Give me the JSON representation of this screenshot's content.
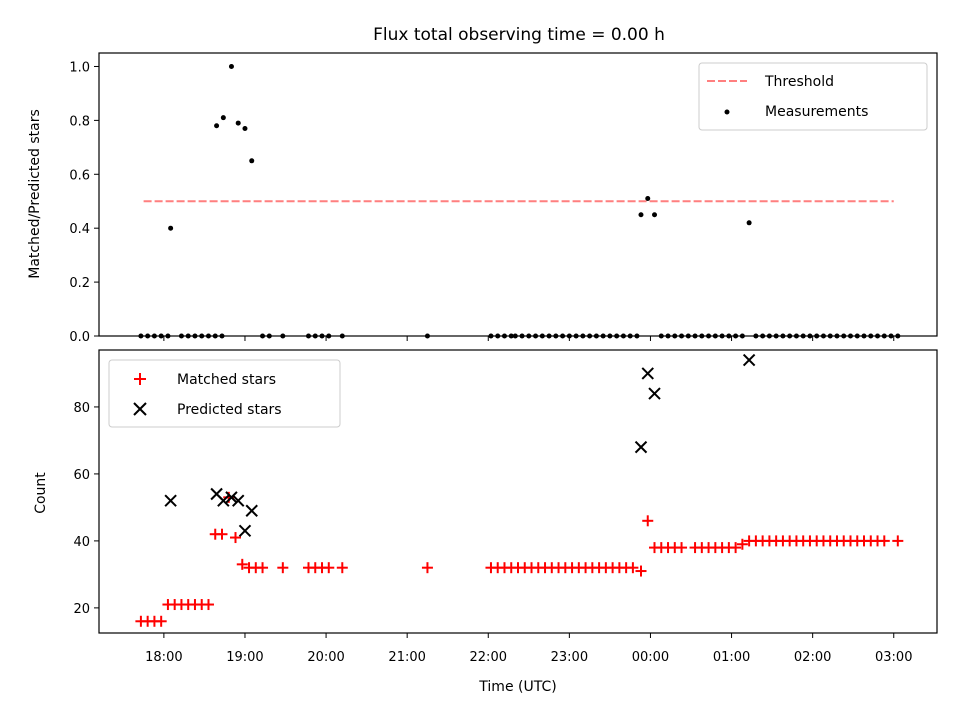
{
  "chart_data": [
    {
      "type": "scatter",
      "title": "Flux total observing time = 0.00 h",
      "ylabel": "Matched/Predicted stars",
      "ylim": [
        0,
        1.05
      ],
      "yticks": [
        0.0,
        0.2,
        0.4,
        0.6,
        0.8,
        1.0
      ],
      "ytick_labels": [
        "0.0",
        "0.2",
        "0.4",
        "0.6",
        "0.8",
        "1.0"
      ],
      "legend_position": "top-right",
      "threshold": {
        "name": "Threshold",
        "value": 0.5,
        "color": "#ff7f7f",
        "style": "dashed",
        "x_range": [
          "17:45",
          "03:00"
        ]
      },
      "series": [
        {
          "name": "Measurements",
          "color": "#000000",
          "points": [
            [
              "17:43",
              0
            ],
            [
              "17:48",
              0
            ],
            [
              "17:53",
              0
            ],
            [
              "17:58",
              0
            ],
            [
              "18:03",
              0
            ],
            [
              "18:05",
              0.4
            ],
            [
              "18:13",
              0
            ],
            [
              "18:18",
              0
            ],
            [
              "18:23",
              0
            ],
            [
              "18:28",
              0
            ],
            [
              "18:33",
              0
            ],
            [
              "18:38",
              0
            ],
            [
              "18:43",
              0
            ],
            [
              "18:39",
              0.78
            ],
            [
              "18:44",
              0.81
            ],
            [
              "18:50",
              1.0
            ],
            [
              "18:55",
              0.79
            ],
            [
              "19:00",
              0.77
            ],
            [
              "19:05",
              0.65
            ],
            [
              "19:13",
              0
            ],
            [
              "19:18",
              0
            ],
            [
              "19:28",
              0
            ],
            [
              "19:47",
              0
            ],
            [
              "19:52",
              0
            ],
            [
              "19:57",
              0
            ],
            [
              "20:02",
              0
            ],
            [
              "20:12",
              0
            ],
            [
              "21:15",
              0
            ],
            [
              "22:02",
              0
            ],
            [
              "22:07",
              0
            ],
            [
              "22:12",
              0
            ],
            [
              "22:17",
              0
            ],
            [
              "22:20",
              0
            ],
            [
              "22:25",
              0
            ],
            [
              "22:30",
              0
            ],
            [
              "22:35",
              0
            ],
            [
              "22:40",
              0
            ],
            [
              "22:45",
              0
            ],
            [
              "22:50",
              0
            ],
            [
              "22:55",
              0
            ],
            [
              "23:00",
              0
            ],
            [
              "23:05",
              0
            ],
            [
              "23:10",
              0
            ],
            [
              "23:15",
              0
            ],
            [
              "23:20",
              0
            ],
            [
              "23:25",
              0
            ],
            [
              "23:30",
              0
            ],
            [
              "23:35",
              0
            ],
            [
              "23:40",
              0
            ],
            [
              "23:45",
              0
            ],
            [
              "23:50",
              0
            ],
            [
              "23:53",
              0.45
            ],
            [
              "23:58",
              0.51
            ],
            [
              "00:03",
              0.45
            ],
            [
              "00:08",
              0
            ],
            [
              "00:13",
              0
            ],
            [
              "00:18",
              0
            ],
            [
              "00:23",
              0
            ],
            [
              "00:28",
              0
            ],
            [
              "00:33",
              0
            ],
            [
              "00:38",
              0
            ],
            [
              "00:43",
              0
            ],
            [
              "00:48",
              0
            ],
            [
              "00:53",
              0
            ],
            [
              "00:58",
              0
            ],
            [
              "01:03",
              0
            ],
            [
              "01:08",
              0
            ],
            [
              "01:13",
              0.42
            ],
            [
              "01:18",
              0
            ],
            [
              "01:23",
              0
            ],
            [
              "01:28",
              0
            ],
            [
              "01:33",
              0
            ],
            [
              "01:38",
              0
            ],
            [
              "01:43",
              0
            ],
            [
              "01:48",
              0
            ],
            [
              "01:53",
              0
            ],
            [
              "01:58",
              0
            ],
            [
              "02:03",
              0
            ],
            [
              "02:08",
              0
            ],
            [
              "02:13",
              0
            ],
            [
              "02:18",
              0
            ],
            [
              "02:23",
              0
            ],
            [
              "02:28",
              0
            ],
            [
              "02:33",
              0
            ],
            [
              "02:38",
              0
            ],
            [
              "02:43",
              0
            ],
            [
              "02:48",
              0
            ],
            [
              "02:53",
              0
            ],
            [
              "02:58",
              0
            ],
            [
              "03:03",
              0
            ]
          ]
        }
      ]
    },
    {
      "type": "scatter",
      "xlabel": "Time (UTC)",
      "ylabel": "Count",
      "ylim": [
        12.5,
        97
      ],
      "yticks": [
        20,
        40,
        60,
        80
      ],
      "ytick_labels": [
        "20",
        "40",
        "60",
        "80"
      ],
      "xlim": [
        "17:12",
        "03:32"
      ],
      "xticks": [
        "18:00",
        "19:00",
        "20:00",
        "21:00",
        "22:00",
        "23:00",
        "00:00",
        "01:00",
        "02:00",
        "03:00"
      ],
      "xtick_labels": [
        "18:00",
        "19:00",
        "20:00",
        "21:00",
        "22:00",
        "23:00",
        "00:00",
        "01:00",
        "02:00",
        "03:00"
      ],
      "legend_position": "top-left",
      "series": [
        {
          "name": "Matched stars",
          "marker": "+",
          "color": "#ff0000",
          "points": [
            [
              "17:43",
              16
            ],
            [
              "17:48",
              16
            ],
            [
              "17:53",
              16
            ],
            [
              "17:58",
              16
            ],
            [
              "18:03",
              21
            ],
            [
              "18:08",
              21
            ],
            [
              "18:13",
              21
            ],
            [
              "18:18",
              21
            ],
            [
              "18:23",
              21
            ],
            [
              "18:28",
              21
            ],
            [
              "18:33",
              21
            ],
            [
              "18:38",
              42
            ],
            [
              "18:43",
              42
            ],
            [
              "18:48",
              53
            ],
            [
              "18:53",
              41
            ],
            [
              "18:58",
              33
            ],
            [
              "19:03",
              32
            ],
            [
              "19:08",
              32
            ],
            [
              "19:13",
              32
            ],
            [
              "19:28",
              32
            ],
            [
              "19:47",
              32
            ],
            [
              "19:52",
              32
            ],
            [
              "19:57",
              32
            ],
            [
              "20:02",
              32
            ],
            [
              "20:12",
              32
            ],
            [
              "21:15",
              32
            ],
            [
              "22:02",
              32
            ],
            [
              "22:07",
              32
            ],
            [
              "22:12",
              32
            ],
            [
              "22:17",
              32
            ],
            [
              "22:22",
              32
            ],
            [
              "22:27",
              32
            ],
            [
              "22:32",
              32
            ],
            [
              "22:37",
              32
            ],
            [
              "22:42",
              32
            ],
            [
              "22:47",
              32
            ],
            [
              "22:52",
              32
            ],
            [
              "22:57",
              32
            ],
            [
              "23:02",
              32
            ],
            [
              "23:07",
              32
            ],
            [
              "23:12",
              32
            ],
            [
              "23:17",
              32
            ],
            [
              "23:22",
              32
            ],
            [
              "23:27",
              32
            ],
            [
              "23:32",
              32
            ],
            [
              "23:37",
              32
            ],
            [
              "23:42",
              32
            ],
            [
              "23:47",
              32
            ],
            [
              "23:53",
              31
            ],
            [
              "23:58",
              46
            ],
            [
              "00:03",
              38
            ],
            [
              "00:08",
              38
            ],
            [
              "00:13",
              38
            ],
            [
              "00:18",
              38
            ],
            [
              "00:23",
              38
            ],
            [
              "00:33",
              38
            ],
            [
              "00:38",
              38
            ],
            [
              "00:43",
              38
            ],
            [
              "00:48",
              38
            ],
            [
              "00:53",
              38
            ],
            [
              "00:58",
              38
            ],
            [
              "01:03",
              38
            ],
            [
              "01:08",
              39
            ],
            [
              "01:13",
              40
            ],
            [
              "01:18",
              40
            ],
            [
              "01:23",
              40
            ],
            [
              "01:28",
              40
            ],
            [
              "01:33",
              40
            ],
            [
              "01:38",
              40
            ],
            [
              "01:43",
              40
            ],
            [
              "01:48",
              40
            ],
            [
              "01:53",
              40
            ],
            [
              "01:58",
              40
            ],
            [
              "02:03",
              40
            ],
            [
              "02:08",
              40
            ],
            [
              "02:13",
              40
            ],
            [
              "02:18",
              40
            ],
            [
              "02:23",
              40
            ],
            [
              "02:28",
              40
            ],
            [
              "02:33",
              40
            ],
            [
              "02:38",
              40
            ],
            [
              "02:43",
              40
            ],
            [
              "02:48",
              40
            ],
            [
              "02:53",
              40
            ],
            [
              "03:03",
              40
            ]
          ]
        },
        {
          "name": "Predicted stars",
          "marker": "x",
          "color": "#000000",
          "points": [
            [
              "18:05",
              52
            ],
            [
              "18:39",
              54
            ],
            [
              "18:44",
              52
            ],
            [
              "18:50",
              53
            ],
            [
              "18:55",
              52
            ],
            [
              "19:00",
              43
            ],
            [
              "19:05",
              49
            ],
            [
              "23:53",
              68
            ],
            [
              "23:58",
              90
            ],
            [
              "00:03",
              84
            ],
            [
              "01:13",
              94
            ]
          ]
        }
      ]
    }
  ]
}
